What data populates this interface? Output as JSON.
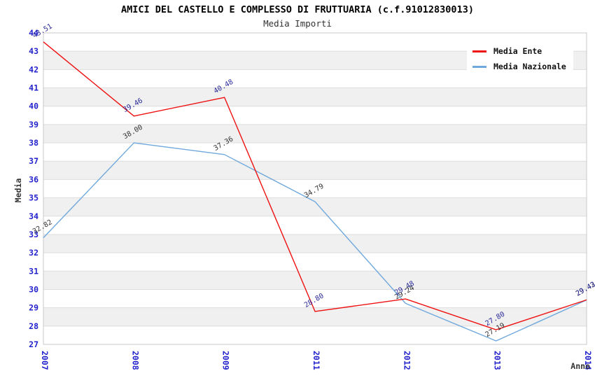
{
  "header": {
    "title": "AMICI DEL CASTELLO E COMPLESSO DI FRUTTUARIA (c.f.91012830013)",
    "subtitle": "Media Importi"
  },
  "chart_data": {
    "type": "line",
    "categories": [
      "2007",
      "2008",
      "2009",
      "2011",
      "2012",
      "2013",
      "2014"
    ],
    "series": [
      {
        "name": "Media Nazionale",
        "color": "#6FA8DC",
        "label_color": "#333333",
        "values": [
          32.82,
          38.0,
          37.36,
          34.79,
          29.24,
          27.19,
          29.42
        ]
      },
      {
        "name": "Media Ente",
        "color": "#EE1111",
        "label_color": "#2A2A99",
        "values": [
          43.51,
          39.46,
          40.48,
          28.8,
          29.48,
          27.8,
          29.43
        ]
      }
    ],
    "xlabel": "Anno",
    "ylabel": "Media",
    "ylim": [
      27,
      44
    ],
    "ytick_step": 1,
    "grid": true,
    "legend_position": "top-right",
    "band_colors": [
      "#FFFFFF",
      "#F0F0F0"
    ],
    "border_color": "#C8C8C8",
    "gridline_color": "#DDDDDD",
    "tick_label_color": "#2222CC",
    "axis_title_color": "#333333"
  }
}
